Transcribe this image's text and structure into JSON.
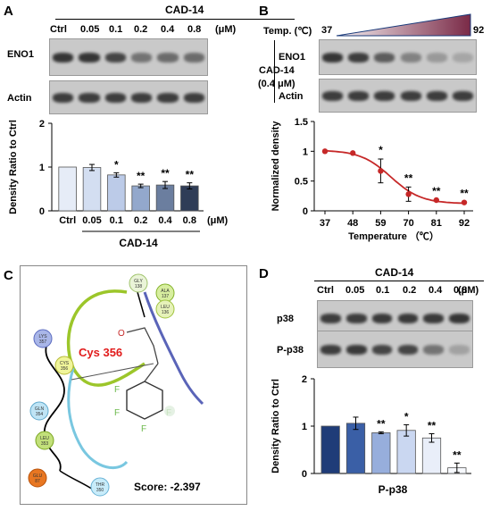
{
  "panels": {
    "A": {
      "letter": "A",
      "treatment": "CAD-14",
      "lanes": [
        "Ctrl",
        "0.05",
        "0.1",
        "0.2",
        "0.4",
        "0.8"
      ],
      "unit": "(μM)",
      "blots": [
        "ENO1",
        "Actin"
      ],
      "sig": [
        "",
        "",
        "*",
        "**",
        "**",
        "**"
      ]
    },
    "B": {
      "letter": "B",
      "temp_label": "Temp. (℃)",
      "temp_start": "37",
      "temp_end": "92",
      "treatment": "CAD-14",
      "dose": "(0.4 μM)",
      "blots": [
        "ENO1",
        "Actin"
      ],
      "sig": [
        "",
        "",
        "*",
        "**",
        "**",
        "**"
      ]
    },
    "C": {
      "letter": "C",
      "residue_label": "Cys 356",
      "score": "Score: -2.397",
      "residues": [
        "GLY 138",
        "ALA 137",
        "LEU 136",
        "LYS 357",
        "CYS 356",
        "GLN 354",
        "LEU 353",
        "GLU 87",
        "THR 350"
      ],
      "atom_labels": [
        "O",
        "F",
        "F",
        "F",
        "F"
      ]
    },
    "D": {
      "letter": "D",
      "treatment": "CAD-14",
      "lanes": [
        "Ctrl",
        "0.05",
        "0.1",
        "0.2",
        "0.4",
        "0.8"
      ],
      "unit": "(μM)",
      "blots": [
        "p38",
        "P-p38"
      ],
      "sig": [
        "",
        "",
        "**",
        "*",
        "**",
        "**"
      ],
      "xlabel": "P-p38"
    }
  },
  "chart_data": [
    {
      "id": "A-bar",
      "type": "bar",
      "categories": [
        "Ctrl",
        "0.05",
        "0.1",
        "0.2",
        "0.4",
        "0.8"
      ],
      "xlabel_unit": "(μM)",
      "xlabel": "CAD-14",
      "ylabel": "Density Ratio to Ctrl",
      "ylim": [
        0,
        2
      ],
      "yticks": [
        "0",
        "1",
        "2"
      ],
      "values": [
        1.0,
        0.99,
        0.82,
        0.57,
        0.59,
        0.57
      ],
      "errors": [
        0.0,
        0.07,
        0.05,
        0.04,
        0.08,
        0.07
      ],
      "colors": [
        "#e6ecf7",
        "#d3def1",
        "#bccbe8",
        "#93a8cc",
        "#6b7e9f",
        "#2f3d57"
      ]
    },
    {
      "id": "B-line",
      "type": "scatter",
      "x": [
        37,
        48,
        59,
        70,
        81,
        92
      ],
      "y": [
        1.0,
        0.97,
        0.67,
        0.28,
        0.18,
        0.14
      ],
      "errors": [
        0.0,
        0.0,
        0.2,
        0.12,
        0.0,
        0.0
      ],
      "xlabel": "Temperature （℃）",
      "ylabel": "Normalized density",
      "ylim": [
        0,
        1.5
      ],
      "yticks": [
        "0",
        "0.5",
        "1",
        "1.5"
      ],
      "xticks": [
        "37",
        "48",
        "59",
        "70",
        "81",
        "92"
      ],
      "color": "#c62828"
    },
    {
      "id": "D-bar",
      "type": "bar",
      "categories": [
        "Ctrl",
        "0.05",
        "0.1",
        "0.2",
        "0.4",
        "0.8"
      ],
      "ylabel": "Density Ratio to Ctrl",
      "ylim": [
        0,
        2
      ],
      "yticks": [
        "0",
        "1",
        "2"
      ],
      "values": [
        1.0,
        1.06,
        0.86,
        0.91,
        0.75,
        0.12
      ],
      "errors": [
        0.0,
        0.13,
        0.02,
        0.12,
        0.09,
        0.1
      ],
      "colors": [
        "#1f3c78",
        "#3a5fa6",
        "#97aedc",
        "#cad7f1",
        "#e9eef9",
        "#f7f9fd"
      ]
    }
  ]
}
